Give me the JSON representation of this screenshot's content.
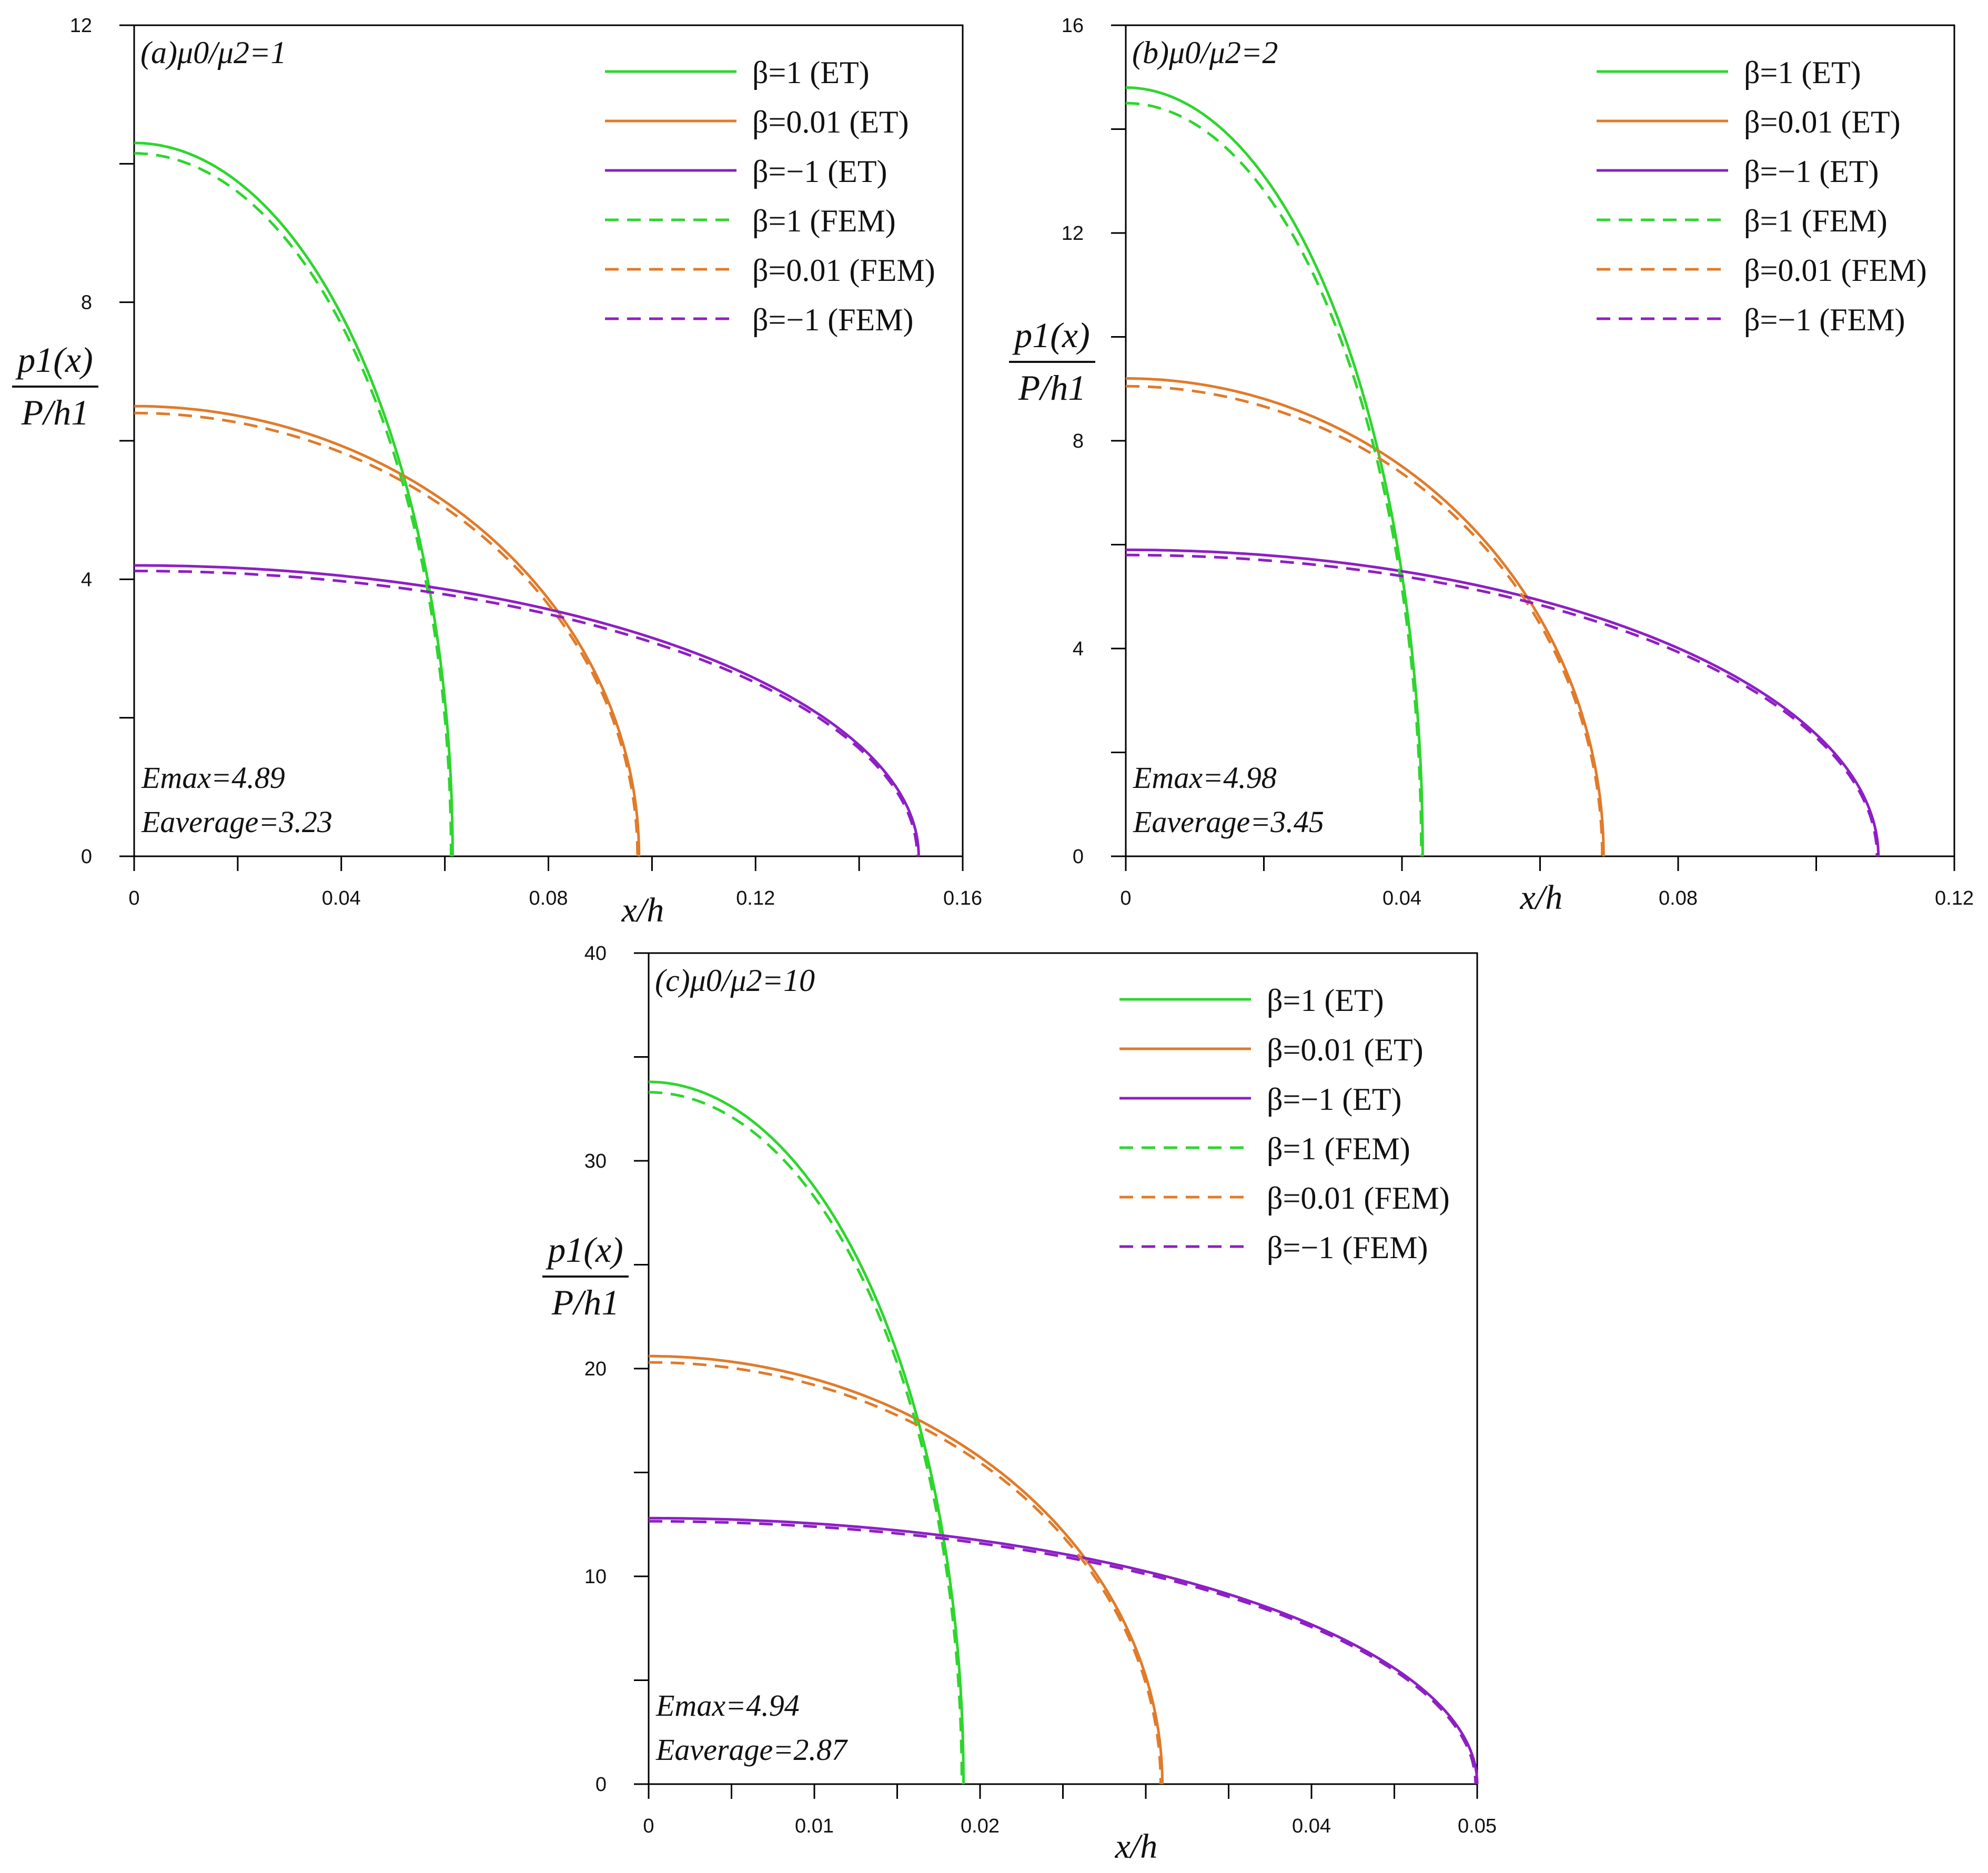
{
  "figure": {
    "yaxis_label_numerator": "p1(x)",
    "yaxis_label_denominator": "P/h1"
  },
  "chart_data": [
    {
      "type": "line",
      "panel_label": "(a)μ0/μ2=1",
      "xlabel": "x/h",
      "xlim": [
        0,
        0.16
      ],
      "ylim": [
        0,
        12
      ],
      "xticks": [
        "0",
        "0.04",
        "0.08",
        "0.12",
        "0.16"
      ],
      "yticks": [
        "0",
        "4",
        "8",
        "12"
      ],
      "annotations": [
        "Emax=4.89",
        "Eaverage=3.23"
      ],
      "grid": false,
      "legend_position": "top-right",
      "series": [
        {
          "name": "β=1 (ET)",
          "color": "#2ed52e",
          "dashed": false,
          "peak": 10.3,
          "x_end": 0.0615
        },
        {
          "name": "β=0.01 (ET)",
          "color": "#e07b2a",
          "dashed": false,
          "peak": 6.5,
          "x_end": 0.0975
        },
        {
          "name": "β=−1 (ET)",
          "color": "#8e1fc4",
          "dashed": false,
          "peak": 4.2,
          "x_end": 0.1515
        },
        {
          "name": "β=1 (FEM)",
          "color": "#2ed52e",
          "dashed": true,
          "peak": 10.15,
          "x_end": 0.0612
        },
        {
          "name": "β=0.01 (FEM)",
          "color": "#e07b2a",
          "dashed": true,
          "peak": 6.4,
          "x_end": 0.0972
        },
        {
          "name": "β=−1 (FEM)",
          "color": "#8e1fc4",
          "dashed": true,
          "peak": 4.12,
          "x_end": 0.1512
        }
      ]
    },
    {
      "type": "line",
      "panel_label": "(b)μ0/μ2=2",
      "xlabel": "x/h",
      "xlim": [
        0,
        0.12
      ],
      "ylim": [
        0,
        16
      ],
      "xticks": [
        "0",
        "0.04",
        "0.08",
        "0.12"
      ],
      "yticks": [
        "0",
        "4",
        "8",
        "12",
        "16"
      ],
      "annotations": [
        "Emax=4.98",
        "Eaverage=3.45"
      ],
      "grid": false,
      "legend_position": "top-right",
      "series": [
        {
          "name": "β=1 (ET)",
          "color": "#2ed52e",
          "dashed": false,
          "peak": 14.8,
          "x_end": 0.043
        },
        {
          "name": "β=0.01 (ET)",
          "color": "#e07b2a",
          "dashed": false,
          "peak": 9.2,
          "x_end": 0.0692
        },
        {
          "name": "β=−1 (ET)",
          "color": "#8e1fc4",
          "dashed": false,
          "peak": 5.9,
          "x_end": 0.109
        },
        {
          "name": "β=1 (FEM)",
          "color": "#2ed52e",
          "dashed": true,
          "peak": 14.5,
          "x_end": 0.0428
        },
        {
          "name": "β=0.01 (FEM)",
          "color": "#e07b2a",
          "dashed": true,
          "peak": 9.05,
          "x_end": 0.069
        },
        {
          "name": "β=−1 (FEM)",
          "color": "#8e1fc4",
          "dashed": true,
          "peak": 5.8,
          "x_end": 0.1088
        }
      ]
    },
    {
      "type": "line",
      "panel_label": "(c)μ0/μ2=10",
      "xlabel": "x/h",
      "xlim": [
        0,
        0.05
      ],
      "ylim": [
        0,
        40
      ],
      "xticks": [
        "0",
        "0.01",
        "0.02",
        "0.04",
        "0.05"
      ],
      "yticks": [
        "0",
        "10",
        "20",
        "30",
        "40"
      ],
      "annotations": [
        "Emax=4.94",
        "Eaverage=2.87"
      ],
      "grid": false,
      "legend_position": "top-right",
      "series": [
        {
          "name": "β=1 (ET)",
          "color": "#2ed52e",
          "dashed": false,
          "peak": 33.8,
          "x_end": 0.019
        },
        {
          "name": "β=0.01 (ET)",
          "color": "#e07b2a",
          "dashed": false,
          "peak": 20.6,
          "x_end": 0.031
        },
        {
          "name": "β=−1 (ET)",
          "color": "#8e1fc4",
          "dashed": false,
          "peak": 12.8,
          "x_end": 0.05
        },
        {
          "name": "β=1 (FEM)",
          "color": "#2ed52e",
          "dashed": true,
          "peak": 33.3,
          "x_end": 0.0189
        },
        {
          "name": "β=0.01 (FEM)",
          "color": "#e07b2a",
          "dashed": true,
          "peak": 20.3,
          "x_end": 0.0309
        },
        {
          "name": "β=−1 (FEM)",
          "color": "#8e1fc4",
          "dashed": true,
          "peak": 12.65,
          "x_end": 0.0499
        }
      ]
    }
  ]
}
